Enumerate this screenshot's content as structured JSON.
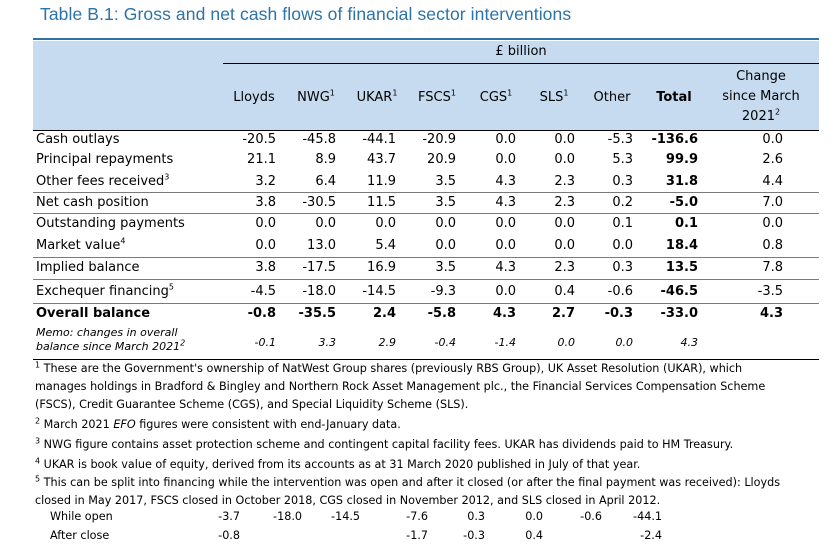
{
  "title": "Table B.1: Gross and net cash flows of financial sector interventions",
  "unit": "£ billion",
  "columns": [
    {
      "label": "Lloyds",
      "sup": ""
    },
    {
      "label": "NWG",
      "sup": "1"
    },
    {
      "label": "UKAR",
      "sup": "1"
    },
    {
      "label": "FSCS",
      "sup": "1"
    },
    {
      "label": "CGS",
      "sup": "1"
    },
    {
      "label": "SLS",
      "sup": "1"
    },
    {
      "label": "Other",
      "sup": ""
    },
    {
      "label": "Total",
      "sup": ""
    }
  ],
  "change_header": {
    "line1": "Change",
    "line2": "since March",
    "line3": "2021",
    "sup": "2"
  },
  "rows": [
    {
      "label": "Cash outlays",
      "sup": "",
      "values": [
        "-20.5",
        "-45.8",
        "-44.1",
        "-20.9",
        "0.0",
        "0.0",
        "-5.3",
        "-136.6",
        "0.0"
      ]
    },
    {
      "label": "Principal repayments",
      "sup": "",
      "values": [
        "21.1",
        "8.9",
        "43.7",
        "20.9",
        "0.0",
        "0.0",
        "5.3",
        "99.9",
        "2.6"
      ]
    },
    {
      "label": "Other fees received",
      "sup": "3",
      "values": [
        "3.2",
        "6.4",
        "11.9",
        "3.5",
        "4.3",
        "2.3",
        "0.3",
        "31.8",
        "4.4"
      ]
    },
    {
      "label": "Net cash position",
      "sup": "",
      "values": [
        "3.8",
        "-30.5",
        "11.5",
        "3.5",
        "4.3",
        "2.3",
        "0.2",
        "-5.0",
        "7.0"
      ]
    },
    {
      "label": "Outstanding payments",
      "sup": "",
      "values": [
        "0.0",
        "0.0",
        "0.0",
        "0.0",
        "0.0",
        "0.0",
        "0.1",
        "0.1",
        "0.0"
      ]
    },
    {
      "label": "Market value",
      "sup": "4",
      "values": [
        "0.0",
        "13.0",
        "5.4",
        "0.0",
        "0.0",
        "0.0",
        "0.0",
        "18.4",
        "0.8"
      ]
    },
    {
      "label": "Implied balance",
      "sup": "",
      "values": [
        "3.8",
        "-17.5",
        "16.9",
        "3.5",
        "4.3",
        "2.3",
        "0.3",
        "13.5",
        "7.8"
      ]
    },
    {
      "label": "Exchequer financing",
      "sup": "5",
      "values": [
        "-4.5",
        "-18.0",
        "-14.5",
        "-9.3",
        "0.0",
        "0.4",
        "-0.6",
        "-46.5",
        "-3.5"
      ]
    },
    {
      "label": "Overall balance",
      "sup": "",
      "values": [
        "-0.8",
        "-35.5",
        "2.4",
        "-5.8",
        "4.3",
        "2.7",
        "-0.3",
        "-33.0",
        "4.3"
      ]
    }
  ],
  "memo": {
    "line1": "Memo: changes in overall",
    "line2": "balance since March 2021",
    "sup": "2",
    "values": [
      "-0.1",
      "3.3",
      "2.9",
      "-0.4",
      "-1.4",
      "0.0",
      "0.0",
      "4.3"
    ]
  },
  "footnotes": {
    "fn1_a": "These are the Government's ownership of NatWest Group shares (previously RBS Group), UK Asset Resolution (UKAR), which",
    "fn1_b": "manages holdings in Bradford & Bingley and Northern Rock Asset Management plc., the Financial Services Compensation Scheme",
    "fn1_c": "(FSCS), Credit Guarantee Scheme (CGS), and Special Liquidity Scheme (SLS).",
    "fn2_a": "March 2021 ",
    "fn2_b": "EFO",
    "fn2_c": " figures were consistent with end-January data.",
    "fn3": "NWG figure contains asset protection scheme and contingent capital facility fees. UKAR has dividends paid to HM Treasury.",
    "fn4": "UKAR is book value of equity, derived from its accounts as at 31 March 2020 published in July of that year.",
    "fn5_a": "This can be split into financing while the intervention was open and after it closed (or after the final payment was received): Lloyds",
    "fn5_b": "closed in May 2017, FSCS closed in October 2018, CGS closed in November 2012, and SLS closed in April 2012."
  },
  "split_rows": [
    {
      "label": "While open",
      "values": [
        "-3.7",
        "-18.0",
        "-14.5",
        "-7.6",
        "0.3",
        "0.0",
        "-0.6",
        "-44.1"
      ]
    },
    {
      "label": "After close",
      "values": [
        "-0.8",
        "",
        "",
        "-1.7",
        "-0.3",
        "0.4",
        "",
        "-2.4"
      ]
    }
  ]
}
